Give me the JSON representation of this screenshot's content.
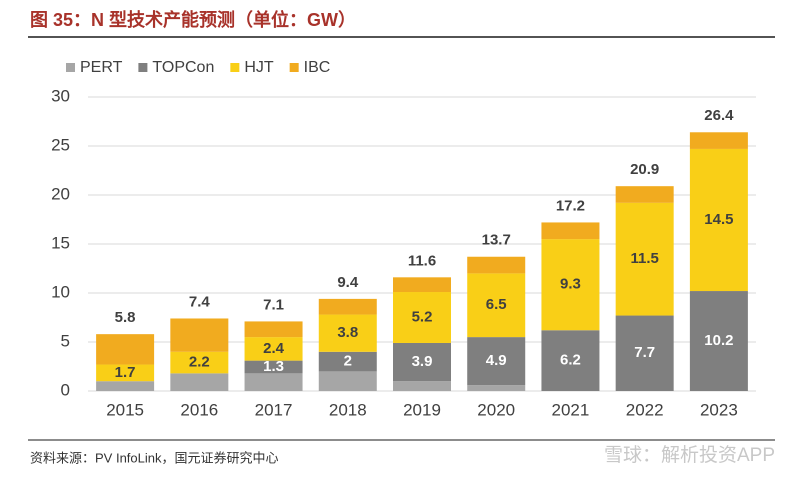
{
  "chart_data": {
    "type": "stacked-bar",
    "title": "图 35：N 型技术产能预测（单位：GW）",
    "source": "资料来源：PV InfoLink，国元证券研究中心",
    "watermark": "雪球：解析投资APP",
    "categories": [
      "2015",
      "2016",
      "2017",
      "2018",
      "2019",
      "2020",
      "2021",
      "2022",
      "2023"
    ],
    "series": [
      {
        "name": "PERT",
        "color": "#a6a6a6",
        "show_labels": false,
        "label_color": "#ffffff",
        "values": [
          1.0,
          1.8,
          1.8,
          2.0,
          1.0,
          0.6,
          0,
          0,
          0
        ]
      },
      {
        "name": "TOPCon",
        "color": "#7f7f7f",
        "show_labels": true,
        "label_color": "#ffffff",
        "values": [
          0,
          0,
          1.3,
          2.0,
          3.9,
          4.9,
          6.2,
          7.7,
          10.2
        ]
      },
      {
        "name": "HJT",
        "color": "#f9cf17",
        "show_labels": true,
        "label_color": "#404040",
        "values": [
          1.7,
          2.2,
          2.4,
          3.8,
          5.2,
          6.5,
          9.3,
          11.5,
          14.5
        ]
      },
      {
        "name": "IBC",
        "color": "#f1ab1f",
        "show_labels": false,
        "label_color": "#404040",
        "values": [
          3.1,
          3.4,
          1.6,
          1.6,
          1.5,
          1.7,
          1.7,
          1.7,
          1.7
        ]
      }
    ],
    "totals": [
      5.8,
      7.4,
      7.1,
      9.4,
      11.6,
      13.7,
      17.2,
      20.9,
      26.4
    ],
    "ylim": [
      0,
      30
    ],
    "yticks": [
      0,
      5,
      10,
      15,
      20,
      25,
      30
    ],
    "grid": true,
    "legend": "top-left"
  }
}
